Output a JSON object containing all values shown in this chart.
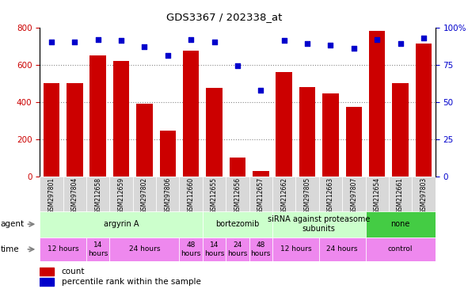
{
  "title": "GDS3367 / 202338_at",
  "samples": [
    "GSM297801",
    "GSM297804",
    "GSM212658",
    "GSM212659",
    "GSM297802",
    "GSM297806",
    "GSM212660",
    "GSM212655",
    "GSM212656",
    "GSM212657",
    "GSM212662",
    "GSM297805",
    "GSM212663",
    "GSM297807",
    "GSM212654",
    "GSM212661",
    "GSM297803"
  ],
  "bar_values": [
    500,
    500,
    650,
    620,
    390,
    245,
    675,
    475,
    100,
    30,
    560,
    480,
    445,
    375,
    780,
    500,
    715
  ],
  "dot_values": [
    90,
    90,
    92,
    91,
    87,
    81,
    92,
    90,
    74,
    58,
    91,
    89,
    88,
    86,
    92,
    89,
    93
  ],
  "bar_color": "#cc0000",
  "dot_color": "#0000cc",
  "ylim_left": [
    0,
    800
  ],
  "ylim_right": [
    0,
    100
  ],
  "yticks_left": [
    0,
    200,
    400,
    600,
    800
  ],
  "yticks_right": [
    0,
    25,
    50,
    75,
    100
  ],
  "yticklabels_right": [
    "0",
    "25",
    "50",
    "75",
    "100%"
  ],
  "agent_groups": [
    {
      "label": "argyrin A",
      "start": 0,
      "end": 7,
      "color": "#ccffcc"
    },
    {
      "label": "bortezomib",
      "start": 7,
      "end": 10,
      "color": "#ccffcc"
    },
    {
      "label": "siRNA against proteasome\nsubunits",
      "start": 10,
      "end": 14,
      "color": "#ccffcc"
    },
    {
      "label": "none",
      "start": 14,
      "end": 17,
      "color": "#44dd44"
    }
  ],
  "time_groups": [
    {
      "label": "12 hours",
      "start": 0,
      "end": 2
    },
    {
      "label": "14\nhours",
      "start": 2,
      "end": 3
    },
    {
      "label": "24 hours",
      "start": 3,
      "end": 6
    },
    {
      "label": "48\nhours",
      "start": 6,
      "end": 7
    },
    {
      "label": "14\nhours",
      "start": 7,
      "end": 8
    },
    {
      "label": "24\nhours",
      "start": 8,
      "end": 9
    },
    {
      "label": "48\nhours",
      "start": 9,
      "end": 10
    },
    {
      "label": "12 hours",
      "start": 10,
      "end": 12
    },
    {
      "label": "24 hours",
      "start": 12,
      "end": 14
    },
    {
      "label": "control",
      "start": 14,
      "end": 17
    }
  ],
  "bg_color": "#ffffff",
  "grid_color": "#888888",
  "tick_label_color_left": "#cc0000",
  "tick_label_color_right": "#0000cc",
  "agent_color_light": "#ccffcc",
  "agent_color_green": "#44cc44",
  "time_color": "#ee88ee",
  "sample_bg": "#d8d8d8"
}
